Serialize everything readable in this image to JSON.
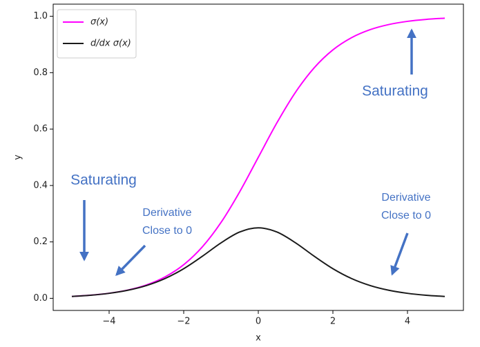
{
  "chart_data": {
    "type": "line",
    "x_label": "x",
    "y_label": "y",
    "x": [
      -5,
      -4.5,
      -4,
      -3.5,
      -3,
      -2.5,
      -2,
      -1.5,
      -1,
      -0.5,
      0,
      0.5,
      1,
      1.5,
      2,
      2.5,
      3,
      3.5,
      4,
      4.5,
      5
    ],
    "series": [
      {
        "name": "σ(x)",
        "color": "#ff00ff",
        "values": [
          0.0067,
          0.011,
          0.018,
          0.0293,
          0.0474,
          0.0759,
          0.1192,
          0.1824,
          0.2689,
          0.3775,
          0.5,
          0.6225,
          0.7311,
          0.8176,
          0.8808,
          0.9241,
          0.9526,
          0.9707,
          0.982,
          0.989,
          0.9933
        ]
      },
      {
        "name": "d/dx σ(x)",
        "color": "#1a1a1a",
        "values": [
          0.0066,
          0.0109,
          0.0177,
          0.0285,
          0.0452,
          0.0701,
          0.105,
          0.1491,
          0.1966,
          0.235,
          0.25,
          0.235,
          0.1966,
          0.1491,
          0.105,
          0.0701,
          0.0452,
          0.0285,
          0.0177,
          0.0109,
          0.0066
        ]
      }
    ],
    "xlim": [
      -5.5,
      5.5
    ],
    "ylim": [
      -0.043,
      1.043
    ],
    "xticks": [
      {
        "value": -4,
        "label": "−4"
      },
      {
        "value": -2,
        "label": "−2"
      },
      0,
      2,
      4
    ],
    "yticks": [
      {
        "value": 0,
        "label": "0.0"
      },
      0.2,
      0.4,
      0.6,
      0.8,
      {
        "value": 1,
        "label": "1.0"
      }
    ],
    "legend": "upper left",
    "annotation_color": "#4472c4",
    "annotations": [
      {
        "lines": [
          "Saturating"
        ]
      },
      {
        "lines": [
          "Saturating"
        ]
      },
      {
        "lines": [
          "Derivative",
          "Close to 0"
        ]
      },
      {
        "lines": [
          "Derivative",
          "Close to 0"
        ]
      }
    ]
  }
}
